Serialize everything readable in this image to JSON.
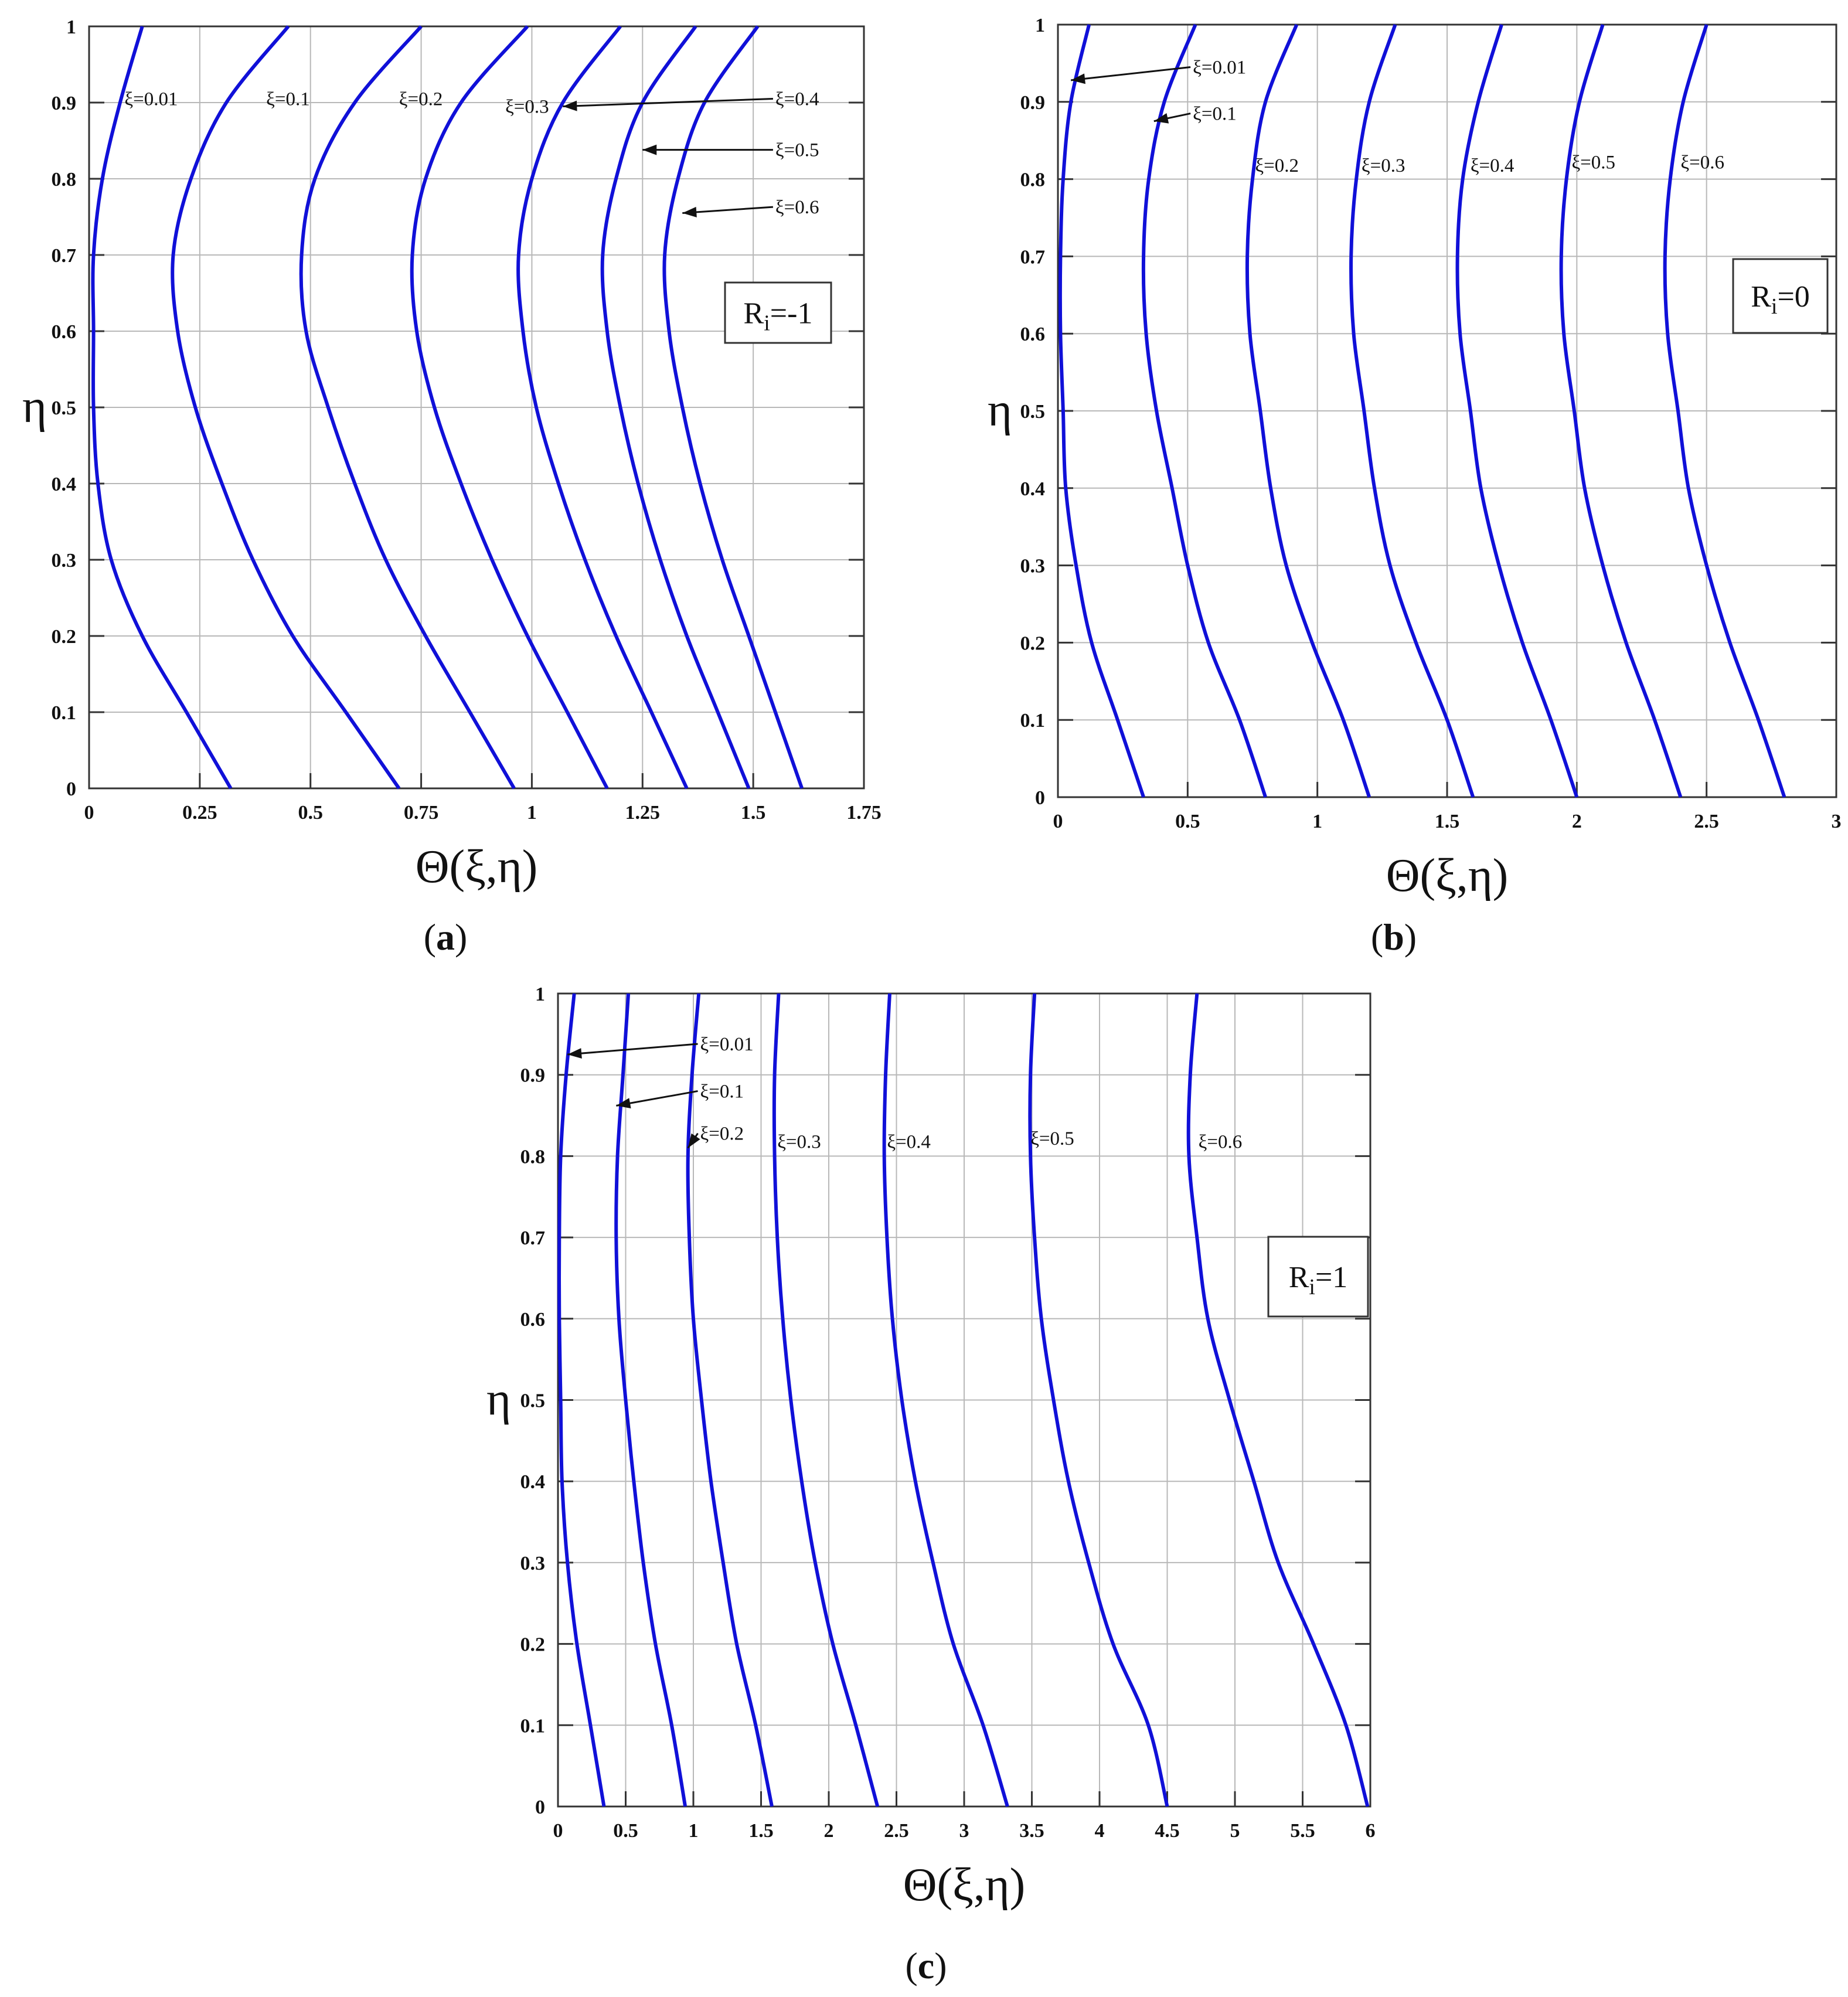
{
  "chart_data": [
    {
      "type": "line",
      "panel": "(a)",
      "panel_letter": "a",
      "annotation_box": {
        "base": "R",
        "sub": "i",
        "rest": "=-1"
      },
      "xlabel": "Θ(ξ,η)",
      "ylabel": "η",
      "xlim": [
        0,
        1.75
      ],
      "ylim": [
        0,
        1
      ],
      "xticks": [
        "0",
        "0.25",
        "0.5",
        "0.75",
        "1",
        "1.25",
        "1.5",
        "1.75"
      ],
      "yticks": [
        "0",
        "0.1",
        "0.2",
        "0.3",
        "0.4",
        "0.5",
        "0.6",
        "0.7",
        "0.8",
        "0.9",
        "1"
      ],
      "grid": true,
      "series": [
        {
          "name": "ξ=0.01",
          "y": [
            0,
            0.1,
            0.2,
            0.3,
            0.4,
            0.5,
            0.6,
            0.7,
            0.8,
            0.9,
            1.0
          ],
          "x": [
            0.32,
            0.22,
            0.12,
            0.05,
            0.02,
            0.01,
            0.01,
            0.01,
            0.03,
            0.07,
            0.12
          ]
        },
        {
          "name": "ξ=0.1",
          "y": [
            0,
            0.1,
            0.2,
            0.3,
            0.4,
            0.5,
            0.6,
            0.7,
            0.8,
            0.9,
            1.0
          ],
          "x": [
            0.7,
            0.58,
            0.46,
            0.37,
            0.3,
            0.24,
            0.2,
            0.19,
            0.23,
            0.31,
            0.45
          ]
        },
        {
          "name": "ξ=0.2",
          "y": [
            0,
            0.1,
            0.2,
            0.3,
            0.4,
            0.5,
            0.6,
            0.7,
            0.8,
            0.9,
            1.0
          ],
          "x": [
            0.96,
            0.86,
            0.76,
            0.67,
            0.6,
            0.54,
            0.49,
            0.48,
            0.51,
            0.6,
            0.75
          ]
        },
        {
          "name": "ξ=0.3",
          "y": [
            0,
            0.1,
            0.2,
            0.3,
            0.4,
            0.5,
            0.6,
            0.7,
            0.8,
            0.9,
            1.0
          ],
          "x": [
            1.17,
            1.08,
            0.99,
            0.91,
            0.84,
            0.78,
            0.74,
            0.73,
            0.76,
            0.84,
            0.99
          ]
        },
        {
          "name": "ξ=0.4",
          "y": [
            0,
            0.1,
            0.2,
            0.3,
            0.4,
            0.5,
            0.6,
            0.7,
            0.8,
            0.9,
            1.0
          ],
          "x": [
            1.35,
            1.27,
            1.19,
            1.12,
            1.06,
            1.01,
            0.98,
            0.97,
            1.0,
            1.07,
            1.2
          ]
        },
        {
          "name": "ξ=0.5",
          "y": [
            0,
            0.1,
            0.2,
            0.3,
            0.4,
            0.5,
            0.6,
            0.7,
            0.8,
            0.9,
            1.0
          ],
          "x": [
            1.49,
            1.42,
            1.35,
            1.29,
            1.24,
            1.2,
            1.17,
            1.16,
            1.19,
            1.25,
            1.37
          ]
        },
        {
          "name": "ξ=0.6",
          "y": [
            0,
            0.1,
            0.2,
            0.3,
            0.4,
            0.5,
            0.6,
            0.7,
            0.8,
            0.9,
            1.0
          ],
          "x": [
            1.61,
            1.55,
            1.49,
            1.43,
            1.38,
            1.34,
            1.31,
            1.3,
            1.33,
            1.39,
            1.51
          ]
        }
      ],
      "annotations": [
        {
          "text": "ξ=0.01",
          "at": [
            0.08,
            0.905
          ]
        },
        {
          "text": "ξ=0.1",
          "at": [
            0.4,
            0.905
          ]
        },
        {
          "text": "ξ=0.2",
          "at": [
            0.7,
            0.905
          ]
        },
        {
          "text": "ξ=0.3",
          "at": [
            0.94,
            0.895
          ]
        },
        {
          "text": "ξ=0.4",
          "at": [
            1.55,
            0.905
          ],
          "arrow_to": [
            1.07,
            0.895
          ]
        },
        {
          "text": "ξ=0.5",
          "at": [
            1.55,
            0.838
          ],
          "arrow_to": [
            1.25,
            0.838
          ]
        },
        {
          "text": "ξ=0.6",
          "at": [
            1.55,
            0.763
          ],
          "arrow_to": [
            1.34,
            0.755
          ]
        }
      ]
    },
    {
      "type": "line",
      "panel": "(b)",
      "panel_letter": "b",
      "annotation_box": {
        "base": "R",
        "sub": "i",
        "rest": "=0"
      },
      "xlabel": "Θ(ξ,η)",
      "ylabel": "η",
      "xlim": [
        0,
        3
      ],
      "ylim": [
        0,
        1
      ],
      "xticks": [
        "0",
        "0.5",
        "1",
        "1.5",
        "2",
        "2.5",
        "3"
      ],
      "yticks": [
        "0",
        "0.1",
        "0.2",
        "0.3",
        "0.4",
        "0.5",
        "0.6",
        "0.7",
        "0.8",
        "0.9",
        "1"
      ],
      "grid": true,
      "series": [
        {
          "name": "ξ=0.01",
          "y": [
            0,
            0.1,
            0.2,
            0.3,
            0.4,
            0.5,
            0.6,
            0.7,
            0.8,
            0.9,
            1.0
          ],
          "x": [
            0.33,
            0.23,
            0.13,
            0.07,
            0.03,
            0.02,
            0.01,
            0.01,
            0.02,
            0.05,
            0.12
          ]
        },
        {
          "name": "ξ=0.1",
          "y": [
            0,
            0.1,
            0.2,
            0.3,
            0.4,
            0.5,
            0.6,
            0.7,
            0.8,
            0.9,
            1.0
          ],
          "x": [
            0.8,
            0.7,
            0.58,
            0.5,
            0.44,
            0.38,
            0.34,
            0.33,
            0.35,
            0.41,
            0.53
          ]
        },
        {
          "name": "ξ=0.2",
          "y": [
            0,
            0.1,
            0.2,
            0.3,
            0.4,
            0.5,
            0.6,
            0.7,
            0.8,
            0.9,
            1.0
          ],
          "x": [
            1.2,
            1.1,
            0.98,
            0.88,
            0.82,
            0.78,
            0.74,
            0.73,
            0.75,
            0.8,
            0.92
          ]
        },
        {
          "name": "ξ=0.3",
          "y": [
            0,
            0.1,
            0.2,
            0.3,
            0.4,
            0.5,
            0.6,
            0.7,
            0.8,
            0.9,
            1.0
          ],
          "x": [
            1.6,
            1.5,
            1.38,
            1.28,
            1.22,
            1.18,
            1.14,
            1.13,
            1.15,
            1.2,
            1.3
          ]
        },
        {
          "name": "ξ=0.4",
          "y": [
            0,
            0.1,
            0.2,
            0.3,
            0.4,
            0.5,
            0.6,
            0.7,
            0.8,
            0.9,
            1.0
          ],
          "x": [
            2.0,
            1.9,
            1.79,
            1.7,
            1.63,
            1.59,
            1.55,
            1.54,
            1.56,
            1.62,
            1.71
          ]
        },
        {
          "name": "ξ=0.5",
          "y": [
            0,
            0.1,
            0.2,
            0.3,
            0.4,
            0.5,
            0.6,
            0.7,
            0.8,
            0.9,
            1.0
          ],
          "x": [
            2.4,
            2.3,
            2.19,
            2.1,
            2.03,
            1.99,
            1.95,
            1.94,
            1.96,
            2.01,
            2.1
          ]
        },
        {
          "name": "ξ=0.6",
          "y": [
            0,
            0.1,
            0.2,
            0.3,
            0.4,
            0.5,
            0.6,
            0.7,
            0.8,
            0.9,
            1.0
          ],
          "x": [
            2.8,
            2.7,
            2.59,
            2.5,
            2.43,
            2.39,
            2.35,
            2.34,
            2.36,
            2.41,
            2.5
          ]
        }
      ],
      "annotations": [
        {
          "text": "ξ=0.01",
          "at": [
            0.52,
            0.945
          ],
          "arrow_to": [
            0.05,
            0.928
          ]
        },
        {
          "text": "ξ=0.1",
          "at": [
            0.52,
            0.885
          ],
          "arrow_to": [
            0.37,
            0.875
          ]
        },
        {
          "text": "ξ=0.2",
          "at": [
            0.76,
            0.818
          ]
        },
        {
          "text": "ξ=0.3",
          "at": [
            1.17,
            0.818
          ]
        },
        {
          "text": "ξ=0.4",
          "at": [
            1.59,
            0.818
          ]
        },
        {
          "text": "ξ=0.5",
          "at": [
            1.98,
            0.822
          ]
        },
        {
          "text": "ξ=0.6",
          "at": [
            2.4,
            0.822
          ]
        }
      ]
    },
    {
      "type": "line",
      "panel": "(c)",
      "panel_letter": "c",
      "annotation_box": {
        "base": "R",
        "sub": "i",
        "rest": "=1"
      },
      "xlabel": "Θ(ξ,η)",
      "ylabel": "η",
      "xlim": [
        0,
        6
      ],
      "ylim": [
        0,
        1
      ],
      "xticks": [
        "0",
        "0.5",
        "1",
        "1.5",
        "2",
        "2.5",
        "3",
        "3.5",
        "4",
        "4.5",
        "5",
        "5.5",
        "6"
      ],
      "yticks": [
        "0",
        "0.1",
        "0.2",
        "0.3",
        "0.4",
        "0.5",
        "0.6",
        "0.7",
        "0.8",
        "0.9",
        "1"
      ],
      "grid": true,
      "series": [
        {
          "name": "ξ=0.01",
          "y": [
            0,
            0.1,
            0.2,
            0.3,
            0.4,
            0.5,
            0.6,
            0.7,
            0.8,
            0.9,
            1.0
          ],
          "x": [
            0.34,
            0.24,
            0.14,
            0.07,
            0.03,
            0.02,
            0.01,
            0.01,
            0.02,
            0.06,
            0.12
          ]
        },
        {
          "name": "ξ=0.1",
          "y": [
            0,
            0.1,
            0.2,
            0.3,
            0.4,
            0.5,
            0.6,
            0.7,
            0.8,
            0.9,
            1.0
          ],
          "x": [
            0.94,
            0.84,
            0.72,
            0.63,
            0.56,
            0.5,
            0.45,
            0.43,
            0.44,
            0.48,
            0.52
          ]
        },
        {
          "name": "ξ=0.2",
          "y": [
            0,
            0.1,
            0.2,
            0.3,
            0.4,
            0.5,
            0.6,
            0.7,
            0.8,
            0.9,
            1.0
          ],
          "x": [
            1.58,
            1.46,
            1.32,
            1.22,
            1.13,
            1.06,
            1.0,
            0.97,
            0.96,
            0.99,
            1.04
          ]
        },
        {
          "name": "ξ=0.3",
          "y": [
            0,
            0.1,
            0.2,
            0.3,
            0.4,
            0.5,
            0.6,
            0.7,
            0.8,
            0.9,
            1.0
          ],
          "x": [
            2.36,
            2.2,
            2.03,
            1.9,
            1.8,
            1.72,
            1.66,
            1.62,
            1.6,
            1.6,
            1.63
          ]
        },
        {
          "name": "ξ=0.4",
          "y": [
            0,
            0.1,
            0.2,
            0.3,
            0.4,
            0.5,
            0.6,
            0.7,
            0.8,
            0.9,
            1.0
          ],
          "x": [
            3.32,
            3.14,
            2.92,
            2.77,
            2.64,
            2.54,
            2.47,
            2.43,
            2.41,
            2.42,
            2.45
          ]
        },
        {
          "name": "ξ=0.5",
          "y": [
            0,
            0.1,
            0.2,
            0.3,
            0.4,
            0.5,
            0.6,
            0.7,
            0.8,
            0.9,
            1.0
          ],
          "x": [
            4.5,
            4.36,
            4.1,
            3.92,
            3.77,
            3.66,
            3.57,
            3.52,
            3.49,
            3.49,
            3.52
          ]
        },
        {
          "name": "ξ=0.6",
          "y": [
            0,
            0.1,
            0.2,
            0.3,
            0.4,
            0.5,
            0.6,
            0.7,
            0.8,
            0.9,
            1.0
          ],
          "x": [
            5.98,
            5.82,
            5.58,
            5.32,
            5.14,
            4.96,
            4.8,
            4.72,
            4.66,
            4.67,
            4.72
          ]
        }
      ],
      "annotations": [
        {
          "text": "ξ=0.01",
          "at": [
            1.05,
            0.938
          ],
          "arrow_to": [
            0.07,
            0.925
          ]
        },
        {
          "text": "ξ=0.1",
          "at": [
            1.05,
            0.88
          ],
          "arrow_to": [
            0.43,
            0.862
          ]
        },
        {
          "text": "ξ=0.2",
          "at": [
            1.05,
            0.828
          ],
          "arrow_to": [
            0.96,
            0.81
          ]
        },
        {
          "text": "ξ=0.3",
          "at": [
            1.62,
            0.818
          ]
        },
        {
          "text": "ξ=0.4",
          "at": [
            2.43,
            0.818
          ]
        },
        {
          "text": "ξ=0.5",
          "at": [
            3.49,
            0.822
          ]
        },
        {
          "text": "ξ=0.6",
          "at": [
            4.73,
            0.818
          ]
        }
      ]
    }
  ]
}
